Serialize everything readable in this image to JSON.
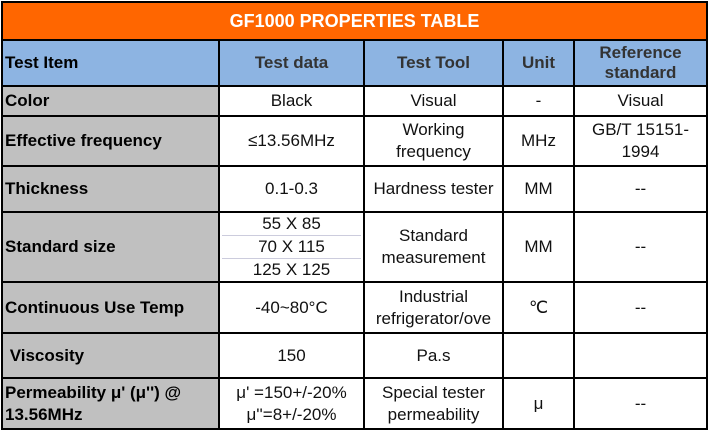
{
  "title": "GF1000  PROPERTIES TABLE",
  "headers": [
    "Test Item",
    "Test data",
    "Test Tool",
    "Unit",
    "Reference standard"
  ],
  "rows": [
    {
      "item": "Color",
      "data": "Black",
      "tool": "Visual",
      "unit": "-",
      "ref": "Visual"
    },
    {
      "item": "Effective frequency",
      "data": "≤13.56MHz",
      "tool": "Working frequency",
      "unit": "MHz",
      "ref": "GB/T 15151-1994"
    },
    {
      "item": "Thickness",
      "data": "0.1-0.3",
      "tool": "Hardness tester",
      "unit": "MM",
      "ref": "--"
    },
    {
      "item": "Standard size",
      "data_lines": [
        "55 X 85",
        "70  X 115",
        "125 X 125"
      ],
      "tool": "Standard measurement",
      "unit": "MM",
      "ref": "--"
    },
    {
      "item": "Continuous Use Temp",
      "data": "-40~80°C",
      "tool": "Industrial refrigerator/ove",
      "unit": "℃",
      "ref": "--"
    },
    {
      "item": " Viscosity",
      "data": "150",
      "tool": "Pa.s",
      "unit": "",
      "ref": ""
    },
    {
      "item": "Permeability μ' (μ'') @ 13.56MHz",
      "data_lines": [
        "μ' =150+/-20%",
        "μ''=8+/-20%"
      ],
      "tool": "Special tester permeability",
      "unit": "μ",
      "ref": "--"
    }
  ],
  "colors": {
    "title": "#ff6600",
    "header": "#8db4e2",
    "item": "#c0c0c0"
  }
}
